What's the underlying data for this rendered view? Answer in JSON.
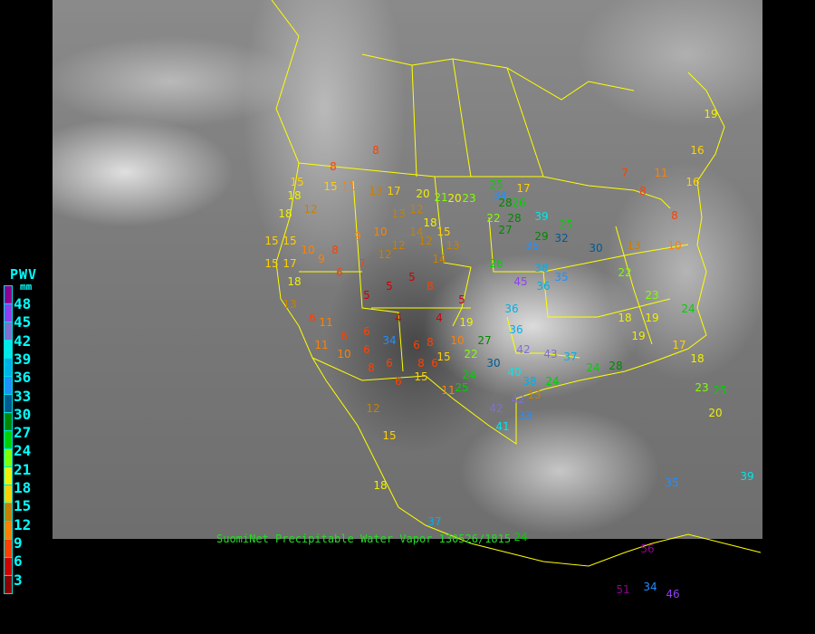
{
  "legend": {
    "title": "PWV",
    "unit": "mm",
    "labels": [
      "48",
      "45",
      "42",
      "39",
      "36",
      "33",
      "30",
      "27",
      "24",
      "21",
      "18",
      "15",
      "12",
      "9",
      "6",
      "3"
    ],
    "colors": [
      "#900090",
      "#9040f0",
      "#8070d0",
      "#00e8e8",
      "#00b0e8",
      "#2090ff",
      "#005a90",
      "#008800",
      "#00d000",
      "#80ff00",
      "#f0f000",
      "#ffd000",
      "#c88000",
      "#ff8000",
      "#ff4000",
      "#d00000",
      "#8b0000"
    ]
  },
  "caption": "SuomiNet Precipitable Water Vapor 130526/1815",
  "boundary_color": "#ffff00",
  "stations": [
    "8",
    "8",
    "15",
    "18",
    "18",
    "12",
    "15",
    "11",
    "13",
    "17",
    "20",
    "21",
    "20",
    "23",
    "25",
    "34",
    "17",
    "28",
    "26",
    "22",
    "28",
    "39",
    "27",
    "29",
    "32",
    "25",
    "35",
    "30",
    "26",
    "38",
    "35",
    "45",
    "36",
    "36",
    "36",
    "42",
    "43",
    "30",
    "24",
    "25",
    "11",
    "15",
    "6",
    "40",
    "38",
    "42",
    "42",
    "33",
    "41",
    "12",
    "15",
    "18",
    "37",
    "56",
    "51",
    "34",
    "46",
    "35",
    "39",
    "20",
    "25",
    "23",
    "16",
    "16",
    "19",
    "11",
    "7",
    "8",
    "8",
    "10",
    "13",
    "22",
    "23",
    "24",
    "19",
    "18",
    "19",
    "17",
    "18",
    "24",
    "28",
    "37",
    "24",
    "13",
    "15",
    "15",
    "15",
    "17",
    "18",
    "13",
    "6",
    "11",
    "6",
    "6",
    "11",
    "10",
    "6",
    "6",
    "8",
    "34",
    "6",
    "8",
    "8",
    "6",
    "15",
    "10",
    "22",
    "27",
    "5",
    "8",
    "5",
    "14",
    "12",
    "15",
    "13",
    "14",
    "12",
    "12",
    "7",
    "6",
    "9",
    "10",
    "8",
    "9",
    "10",
    "13",
    "12",
    "18",
    "5",
    "5",
    "4",
    "4",
    "19",
    "24"
  ]
}
